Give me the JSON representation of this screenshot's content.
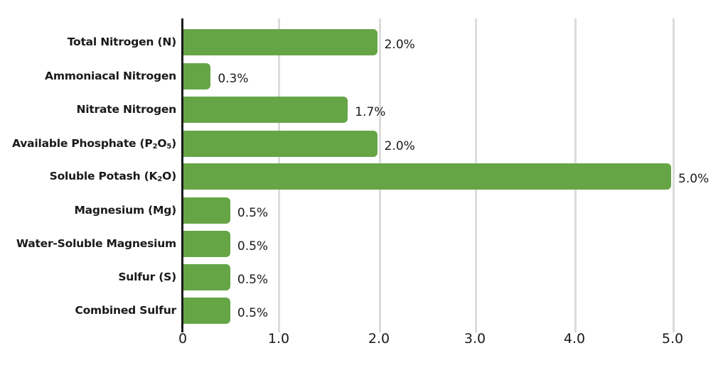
{
  "chart_data": {
    "type": "bar",
    "orientation": "horizontal",
    "title": "",
    "xlabel": "",
    "ylabel": "",
    "xlim": [
      0,
      5.0
    ],
    "grid": "vertical",
    "legend": null,
    "bar_color": "#66a546",
    "categories": [
      "Total Nitrogen (N)",
      "Ammoniacal Nitrogen",
      "Nitrate Nitrogen",
      "Available Phosphate (P2O5)",
      "Soluble Potash (K2O)",
      "Magnesium (Mg)",
      "Water-Soluble Magnesium",
      "Sulfur (S)",
      "Combined Sulfur"
    ],
    "values": [
      2.0,
      0.3,
      1.7,
      2.0,
      5.0,
      0.5,
      0.5,
      0.5,
      0.5
    ],
    "value_labels": [
      "2.0%",
      "0.3%",
      "1.7%",
      "2.0%",
      "5.0%",
      "0.5%",
      "0.5%",
      "0.5%",
      "0.5%"
    ],
    "x_ticks": [
      0,
      1.0,
      2.0,
      3.0,
      4.0,
      5.0
    ],
    "x_tick_labels": [
      "0",
      "1.0",
      "2.0",
      "3.0",
      "4.0",
      "5.0"
    ]
  },
  "labels": [
    {
      "pre": "Total Nitrogen (N)",
      "sub1": "",
      "mid": "",
      "sub2": "",
      "post": ""
    },
    {
      "pre": "Ammoniacal Nitrogen",
      "sub1": "",
      "mid": "",
      "sub2": "",
      "post": ""
    },
    {
      "pre": "Nitrate Nitrogen",
      "sub1": "",
      "mid": "",
      "sub2": "",
      "post": ""
    },
    {
      "pre": "Available Phosphate (P",
      "sub1": "2",
      "mid": "O",
      "sub2": "5",
      "post": ")"
    },
    {
      "pre": "Soluble Potash (K",
      "sub1": "2",
      "mid": "O)",
      "sub2": "",
      "post": ""
    },
    {
      "pre": "Magnesium (Mg)",
      "sub1": "",
      "mid": "",
      "sub2": "",
      "post": ""
    },
    {
      "pre": "Water-Soluble Magnesium",
      "sub1": "",
      "mid": "",
      "sub2": "",
      "post": ""
    },
    {
      "pre": "Sulfur (S)",
      "sub1": "",
      "mid": "",
      "sub2": "",
      "post": ""
    },
    {
      "pre": "Combined Sulfur",
      "sub1": "",
      "mid": "",
      "sub2": "",
      "post": ""
    }
  ]
}
